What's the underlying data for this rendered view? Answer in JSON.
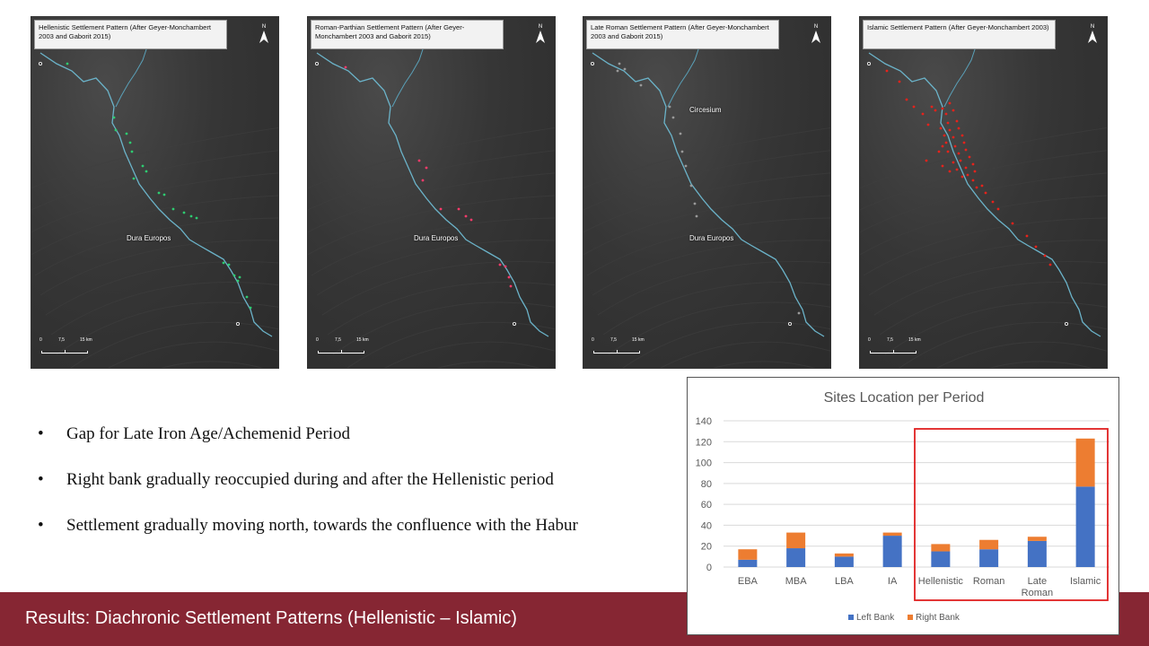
{
  "maps": [
    {
      "title": "Hellenistic Settlement Pattern (After Geyer-Monchambert 2003 and Gaborit 2015)",
      "label": "Dura Europos",
      "dot_color": "#2ecc71",
      "scale_ticks": [
        "0",
        "7,5",
        "15 km"
      ],
      "north": "N"
    },
    {
      "title": "Roman-Parthian Settlement Pattern (After Geyer-Monchambert 2003 and Gaborit 2015)",
      "label": "Dura Europos",
      "dot_color": "#ff3b6b",
      "scale_ticks": [
        "0",
        "7,5",
        "15 km"
      ],
      "north": "N"
    },
    {
      "title": "Late Roman Settlement Pattern (After Geyer-Monchambert 2003 and Gaborit 2015)",
      "label": "Dura Europos",
      "label2": "Circesium",
      "dot_color": "#9a9a9a",
      "scale_ticks": [
        "0",
        "7,5",
        "15 km"
      ],
      "north": "N"
    },
    {
      "title": "Islamic Settlement Pattern (After Geyer-Monchambert 2003)",
      "label": "",
      "dot_color": "#e8221b",
      "scale_ticks": [
        "0",
        "7,5",
        "15 km"
      ],
      "north": "N"
    }
  ],
  "bullets": [
    "Gap for Late Iron Age/Achemenid  Period",
    "Right bank gradually reoccupied during and after the Hellenistic period",
    "Settlement gradually moving north, towards the confluence with the Habur"
  ],
  "bullet_symbol": "•",
  "footer": {
    "title": "Results: Diachronic Settlement Patterns (Hellenistic – Islamic)"
  },
  "colors": {
    "left_bank": "#4472c4",
    "right_bank": "#ed7d31",
    "highlight": "#e02020",
    "footer_bg": "#862633"
  },
  "chart_data": {
    "type": "bar",
    "stacked": true,
    "title": "Sites Location per Period",
    "categories": [
      "EBA",
      "MBA",
      "LBA",
      "IA",
      "Hellenistic",
      "Roman",
      "Late Roman",
      "Islamic"
    ],
    "series": [
      {
        "name": "Left Bank",
        "values": [
          7,
          18,
          10,
          30,
          15,
          17,
          25,
          77
        ],
        "color": "#4472c4"
      },
      {
        "name": "Right Bank",
        "values": [
          10,
          15,
          3,
          3,
          7,
          9,
          4,
          46
        ],
        "color": "#ed7d31"
      }
    ],
    "ylim": [
      0,
      140
    ],
    "yticks": [
      0,
      20,
      40,
      60,
      80,
      100,
      120,
      140
    ],
    "grid": true,
    "legend": "bottom",
    "highlight_categories": [
      "Hellenistic",
      "Roman",
      "Late Roman",
      "Islamic"
    ]
  }
}
